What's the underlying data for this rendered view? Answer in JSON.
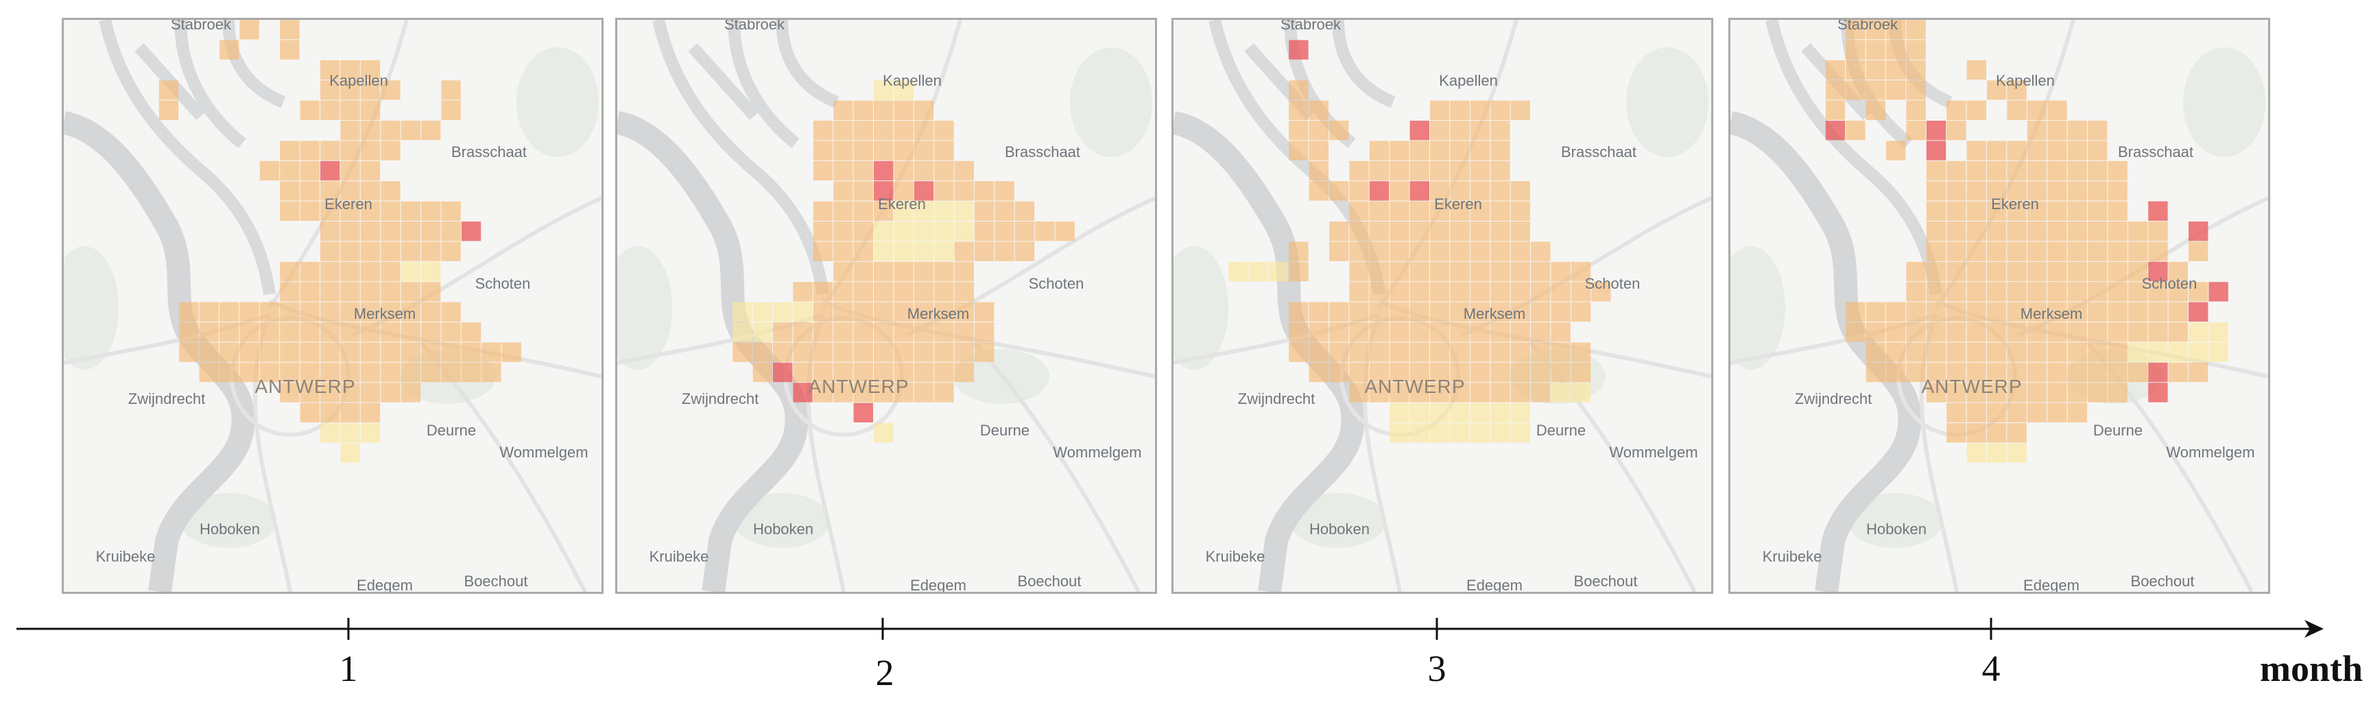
{
  "places": {
    "stabroek": "Stabroek",
    "kapellen": "Kapellen",
    "brasschaat": "Brasschaat",
    "ekeren": "Ekeren",
    "schoten": "Schoten",
    "merksem": "Merksem",
    "antwerp": "ANTWERP",
    "zwijndrecht": "Zwijndrecht",
    "deurne": "Deurne",
    "wommelgem": "Wommelgem",
    "hoboken": "Hoboken",
    "kruibeke": "Kruibeke",
    "edegem": "Edegem",
    "boechout": "Boechout"
  },
  "axis": {
    "title": "month",
    "ticks": [
      "1",
      "2",
      "3",
      "4"
    ]
  },
  "colors": {
    "light": "#fbe79a",
    "medium": "#f5b870",
    "dark": "#e9585a"
  },
  "maps": [
    {
      "month": "1",
      "grid": [
        "......o.o...........",
        ".....o..o...........",
        "..........ooo.......",
        "..o.......oooo..o...",
        "..o......oooo...o...",
        "...........ooooo....",
        "........oooooo......",
        ".......oooxoo.......",
        "........oooooo......",
        "........ooooooooo...",
        "..........ooooooox..",
        "..........ooooooo...",
        "........ooooooyy....",
        "........oooooooo....",
        "...oooooooooooooo...",
        "...ooooooooooooooo..",
        "...ooooooooooooooooo",
        "....ooooooooooooooo.",
        "........ooooooo.....",
        ".........oooo.......",
        "..........yyy.......",
        "...........y........"
      ]
    },
    {
      "month": "2",
      "grid": [
        "....................",
        "....................",
        "....................",
        "..........yy........",
        "........ooooo.......",
        ".......ooooooo......",
        ".......ooooooo......",
        ".......oooxoooo.....",
        "........ooxoxoooo...",
        ".......ooooyyyyooo..",
        ".......oooyyyyyooooo",
        ".......oooyyyyoooo..",
        "........ooooooo.....",
        "......ooooooooo.....",
        "...yyyyooooooooo....",
        "...yyooooooooooo....",
        "...ooooooooooooo....",
        "....oxooooooooo.....",
        "......xooooooo......",
        ".........x..........",
        "..........y.........",
        "...................."
      ]
    },
    {
      "month": "3",
      "grid": [
        "....................",
        "...x................",
        "....................",
        "...o................",
        "...oo.....ooooo.....",
        "...ooo...xoooo......",
        "...oo..ooooooo......",
        "....o.oooooooo......",
        "....oooxoxooooo.....",
        "......ooooooooo.....",
        ".....oooooooooo.....",
        "...o.ooooooooooo....",
        "yyyo..oooooooooooo..",
        "......ooooooooooooo.",
        "...ooooooooooooooo..",
        "...oooooooooooooo...",
        "...ooooooooooooooo..",
        "....oooooooooooooo..",
        "......ooooooooooyy..",
        "........yyyyyyy.....",
        "........yyyyyyy.....",
        "...................."
      ]
    },
    {
      "month": "4",
      "grid": [
        "...oooo.............",
        "...oooo.............",
        "..ooooo..o..........",
        "..ooooo...oo........",
        "..o.o.o.oo.ooo......",
        "..xo..oxo...oooo....",
        ".....o.x.ooooooo....",
        ".......oooooooooo...",
        ".......oooooooooo...",
        ".......oooooooooo.x..",
        ".......oooooooooooo.x",
        ".......oooooooooooo.o",
        "......ooooooooooooxo.",
        "......ooooooooooooooox",
        "...ooooooooooooooooox",
        "...oooooooooooooooooyy",
        "....oooooooooooooyyyyy",
        "....ooooooooooooooxoo.",
        ".......oooooooooo.x...",
        "........ooooooo.......",
        "........oooo..........",
        ".........yyy.........."
      ]
    }
  ]
}
